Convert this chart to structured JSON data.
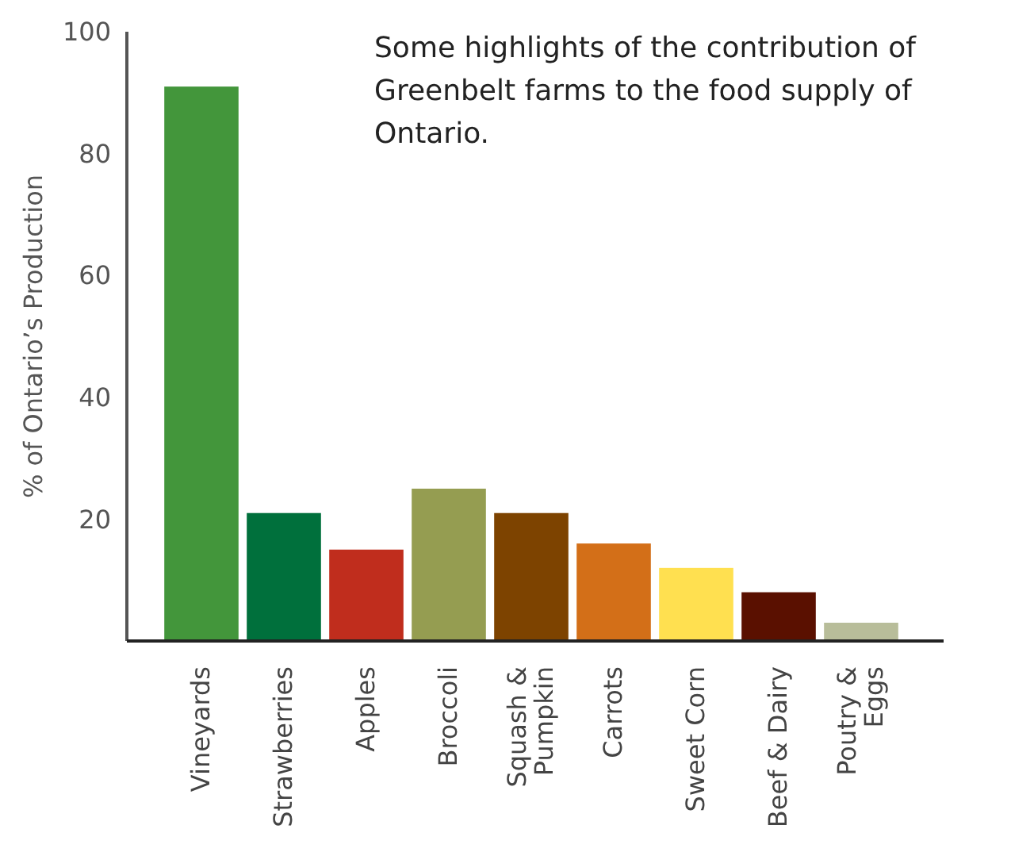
{
  "chart_data": {
    "type": "bar",
    "title": "Some highlights of the contribution of Greenbelt farms to the food supply of Ontario.",
    "ylabel": "% of Ontario’s Production",
    "categories": [
      "Vineyards",
      "Strawberries",
      "Apples",
      "Broccoli",
      "Squash &\nPumpkin",
      "Carrots",
      "Sweet Corn",
      "Beef & Dairy",
      "Poutry &\nEggs"
    ],
    "values": [
      91,
      21,
      15,
      25,
      21,
      16,
      12,
      8,
      3
    ],
    "colors": [
      "#43963b",
      "#00703c",
      "#c02d1d",
      "#959d51",
      "#7d4300",
      "#d36f18",
      "#ffe050",
      "#5a1000",
      "#b8bd9a"
    ],
    "ylim": [
      0,
      100
    ],
    "yticks": [
      20,
      40,
      60,
      80,
      100
    ]
  }
}
